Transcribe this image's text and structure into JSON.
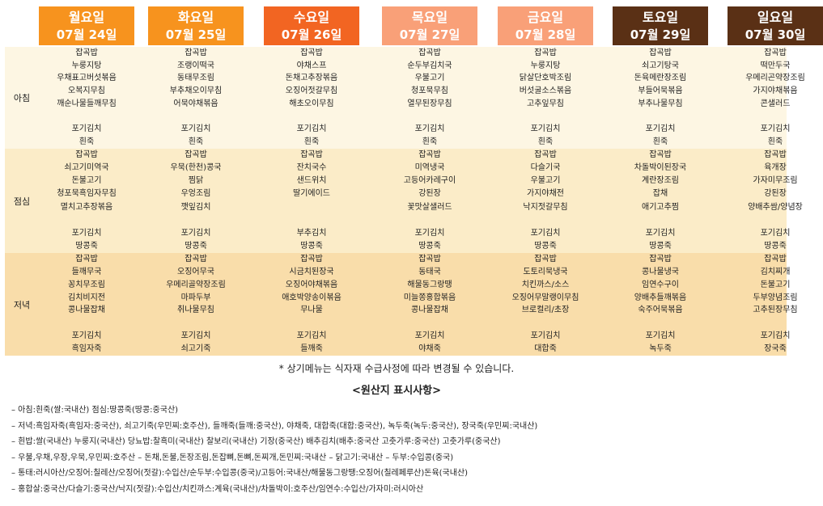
{
  "colors": {
    "header_bg": [
      "#f7931e",
      "#f7931e",
      "#f26522",
      "#f9a078",
      "#f9a078",
      "#5a3015",
      "#5a3015"
    ],
    "band_breakfast": "#fdf6e3",
    "band_lunch": "#fbecc8",
    "band_dinner": "#f9ddaa"
  },
  "rows": {
    "breakfast": "아침",
    "lunch": "점심",
    "dinner": "저녁"
  },
  "days": [
    {
      "day": "월요일",
      "date": "07월 24일",
      "breakfast": [
        "잡곡밥",
        "누룽지탕",
        "우채표고버섯볶음",
        "오복지무침",
        "깨순나물들깨무침",
        "",
        "포기김치",
        "흰죽"
      ],
      "lunch": [
        "잡곡밥",
        "쇠고기미역국",
        "돈불고기",
        "청포묵흑임자무침",
        "멸치고추장볶음",
        "",
        "포기김치",
        "땅콩죽"
      ],
      "dinner": [
        "잡곡밥",
        "들깨무국",
        "꽁치무조림",
        "김치비지전",
        "콩나물잡채",
        "",
        "포기김치",
        "흑임자죽"
      ]
    },
    {
      "day": "화요일",
      "date": "07월 25일",
      "breakfast": [
        "잡곡밥",
        "조랭이떡국",
        "동태무조림",
        "부추채오이무침",
        "어묵야채볶음",
        "",
        "포기김치",
        "흰죽"
      ],
      "lunch": [
        "잡곡밥",
        "우묵(한천)콩국",
        "찜닭",
        "우엉조림",
        "깻잎김치",
        "",
        "포기김치",
        "땅콩죽"
      ],
      "dinner": [
        "잡곡밥",
        "오징어무국",
        "우메리골약장조림",
        "마파두부",
        "취나물무침",
        "",
        "포기김치",
        "쇠고기죽"
      ]
    },
    {
      "day": "수요일",
      "date": "07월 26일",
      "breakfast": [
        "잡곡밥",
        "야채스프",
        "돈채고추장볶음",
        "오징어젓갈무침",
        "해초오이무침",
        "",
        "포기김치",
        "흰죽"
      ],
      "lunch": [
        "잡곡밥",
        "잔치국수",
        "샌드위치",
        "딸기에이드",
        "",
        "",
        "부추김치",
        "땅콩죽"
      ],
      "dinner": [
        "잡곡밥",
        "시금치된장국",
        "오징어야채볶음",
        "애호박양송이볶음",
        "무나물",
        "",
        "포기김치",
        "들깨죽"
      ]
    },
    {
      "day": "목요일",
      "date": "07월 27일",
      "breakfast": [
        "잡곡밥",
        "순두부김치국",
        "우불고기",
        "청포묵무침",
        "열무된장무침",
        "",
        "포기김치",
        "흰죽"
      ],
      "lunch": [
        "잡곡밥",
        "미역냉국",
        "고등어카레구이",
        "강된장",
        "꽃맛살샐러드",
        "",
        "포기김치",
        "땅콩죽"
      ],
      "dinner": [
        "잡곡밥",
        "동태국",
        "해물동그랑땡",
        "미늘쫑홍합볶음",
        "콩나물잡채",
        "",
        "포기김치",
        "야채죽"
      ]
    },
    {
      "day": "금요일",
      "date": "07월 28일",
      "breakfast": [
        "잡곡밥",
        "누룽지탕",
        "닭살단호박조림",
        "버섯굴소스볶음",
        "고추잎무침",
        "",
        "포기김치",
        "흰죽"
      ],
      "lunch": [
        "잡곡밥",
        "다슬기국",
        "우불고기",
        "가지야채전",
        "낙지젓갈무침",
        "",
        "포기김치",
        "땅콩죽"
      ],
      "dinner": [
        "잡곡밥",
        "도토리묵냉국",
        "치킨까스/소스",
        "오징어무말랭이무침",
        "브로컬리/초장",
        "",
        "포기김치",
        "대합죽"
      ]
    },
    {
      "day": "토요일",
      "date": "07월 29일",
      "breakfast": [
        "잡곡밥",
        "쇠고기탕국",
        "돈육메란장조림",
        "부들어묵볶음",
        "부추나물무침",
        "",
        "포기김치",
        "흰죽"
      ],
      "lunch": [
        "잡곡밥",
        "차돌박이된장국",
        "계란장조림",
        "잡채",
        "애기고추찜",
        "",
        "포기김치",
        "땅콩죽"
      ],
      "dinner": [
        "잡곡밥",
        "콩나물냉국",
        "임연수구이",
        "양배추들깨볶음",
        "숙주어묵볶음",
        "",
        "포기김치",
        "녹두죽"
      ]
    },
    {
      "day": "일요일",
      "date": "07월 30일",
      "breakfast": [
        "잡곡밥",
        "떡만두국",
        "우메리곤약장조림",
        "가지야채볶음",
        "콘샐러드",
        "",
        "포기김치",
        "흰죽"
      ],
      "lunch": [
        "잡곡밥",
        "육개장",
        "가자미무조림",
        "강된장",
        "양배추쌈/양념장",
        "",
        "포기김치",
        "땅콩죽"
      ],
      "dinner": [
        "잡곡밥",
        "김치찌개",
        "돈불고기",
        "두부양념조림",
        "고추된장무침",
        "",
        "포기김치",
        "장국죽"
      ]
    }
  ],
  "note": "* 상기메뉴는 식자재 수급사정에 따라 변경될 수 있습니다.",
  "origin_title": "<원산지 표시사항>",
  "origin_lines": [
    "– 아침:흰죽(쌀:국내산) 점심:땅콩죽(땅콩:중국산)",
    "– 저녁:흑임자죽(흑임자:중국산), 쇠고기죽(우민찌:호주산), 들깨죽(들깨:중국산), 야채죽, 대합죽(대합:중국산), 녹두죽(녹두:중국산), 장국죽(우민찌:국내산)",
    "– 흰밥:쌀(국내산) 누룽지(국내산) 당뇨밥:찰흑미(국내산) 찰보리(국내산) 기장(중국산) 배추김치(배추:중국산 고춧가루:중국산) 고춧가루(중국산)",
    "– 우불,우채,우장,우묵,우민찌:호주산 – 돈채,돈불,돈장조림,돈잡뼈,돈뼈,돈찌개,돈민찌:국내산 – 닭고기:국내산 – 두부:수입콩(중국)",
    "– 통태:러시아산/오징어:칠레산/오징어(젓갈):수입산/순두부:수입콩(중국)/고등어:국내산/해물동그랑땡:오징어(칠레페루산)돈육(국내산)",
    "– 홍합살:중국산/다슬기:중국산/낙지(젓갈):수입산/치킨까스:계육(국내산)/차돌박이:호주산/임연수:수입산/가자미:러시아산"
  ]
}
